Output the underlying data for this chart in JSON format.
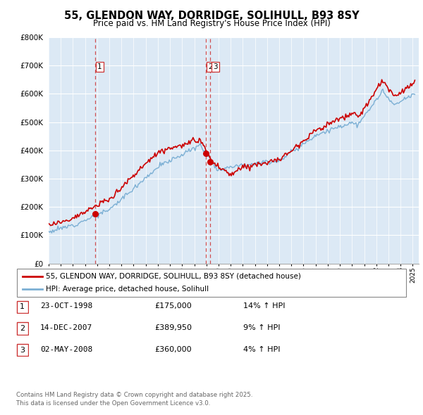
{
  "title": "55, GLENDON WAY, DORRIDGE, SOLIHULL, B93 8SY",
  "subtitle": "Price paid vs. HM Land Registry's House Price Index (HPI)",
  "legend_line1": "55, GLENDON WAY, DORRIDGE, SOLIHULL, B93 8SY (detached house)",
  "legend_line2": "HPI: Average price, detached house, Solihull",
  "footer1": "Contains HM Land Registry data © Crown copyright and database right 2025.",
  "footer2": "This data is licensed under the Open Government Licence v3.0.",
  "transactions": [
    {
      "num": "1",
      "date": "23-OCT-1998",
      "price": "£175,000",
      "hpi": "14% ↑ HPI",
      "year": 1998.81
    },
    {
      "num": "2",
      "date": "14-DEC-2007",
      "price": "£389,950",
      "hpi": "9% ↑ HPI",
      "year": 2007.95
    },
    {
      "num": "3",
      "date": "02-MAY-2008",
      "price": "£360,000",
      "hpi": "4% ↑ HPI",
      "year": 2008.33
    }
  ],
  "transaction_values": [
    175000,
    389950,
    360000
  ],
  "transaction_years": [
    1998.81,
    2007.95,
    2008.33
  ],
  "price_color": "#cc0000",
  "hpi_color": "#7bafd4",
  "vline_color": "#cc3333",
  "chart_bg": "#dce9f5",
  "background_color": "#ffffff",
  "grid_color": "#ffffff",
  "ylim": [
    0,
    800000
  ],
  "xlim_start": 1995.0,
  "xlim_end": 2025.5
}
